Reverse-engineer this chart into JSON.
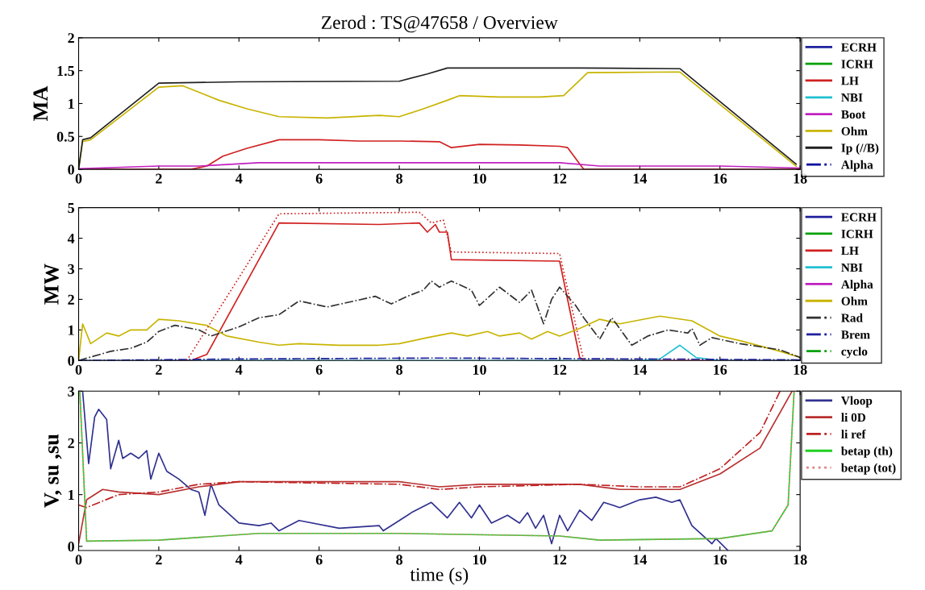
{
  "chart_data": [
    {
      "type": "line",
      "title": "Zerod : TS@47658 / Overview",
      "ylabel": "MA",
      "xlim": [
        0,
        18
      ],
      "xticks": [
        0,
        2,
        4,
        6,
        8,
        10,
        12,
        14,
        16,
        18
      ],
      "ylim": [
        0,
        2
      ],
      "yticks": [
        0,
        0.5,
        1,
        1.5,
        2
      ],
      "grid": false,
      "legend": "right",
      "series": [
        {
          "name": "ECRH",
          "color": "#1f1f9f",
          "line_style": "solid"
        },
        {
          "name": "ICRH",
          "color": "#00a000",
          "line_style": "solid"
        },
        {
          "name": "LH",
          "color": "#d02020",
          "line_style": "solid",
          "x": [
            0,
            2.8,
            3.2,
            3.6,
            4.2,
            5,
            6,
            7,
            8,
            9,
            9.3,
            10,
            11,
            12,
            12.2,
            12.6,
            18
          ],
          "values": [
            0,
            0,
            0.05,
            0.2,
            0.32,
            0.45,
            0.45,
            0.43,
            0.43,
            0.42,
            0.33,
            0.38,
            0.37,
            0.35,
            0.33,
            0,
            0
          ]
        },
        {
          "name": "NBI",
          "color": "#20c0d0",
          "line_style": "solid"
        },
        {
          "name": "Boot",
          "color": "#c020c0",
          "line_style": "solid",
          "x": [
            0,
            2,
            3,
            4.5,
            12,
            13,
            16,
            18
          ],
          "values": [
            0.01,
            0.05,
            0.05,
            0.1,
            0.1,
            0.05,
            0.05,
            0.02
          ]
        },
        {
          "name": "Ohm",
          "color": "#c8b400",
          "line_style": "solid",
          "x": [
            0,
            0.1,
            0.3,
            2,
            2.6,
            3.5,
            4.2,
            5,
            6.2,
            7.5,
            8,
            8.6,
            9.2,
            9.5,
            10.5,
            11.5,
            12.1,
            12.7,
            15,
            17.9
          ],
          "values": [
            0,
            0.42,
            0.45,
            1.25,
            1.27,
            1.05,
            0.92,
            0.8,
            0.78,
            0.82,
            0.8,
            0.92,
            1.05,
            1.12,
            1.1,
            1.1,
            1.12,
            1.47,
            1.48,
            0.05
          ]
        },
        {
          "name": "Ip (//B)",
          "color": "#202020",
          "line_style": "solid",
          "x": [
            0,
            0.1,
            0.3,
            2,
            4,
            8,
            8.7,
            9.2,
            12.5,
            15,
            17.9
          ],
          "values": [
            0,
            0.45,
            0.48,
            1.31,
            1.33,
            1.34,
            1.45,
            1.54,
            1.54,
            1.53,
            0.08
          ]
        },
        {
          "name": "Alpha",
          "color": "#0000a0",
          "line_style": "dashdot"
        }
      ]
    },
    {
      "type": "line",
      "ylabel": "MW",
      "xlim": [
        0,
        18
      ],
      "xticks": [
        0,
        2,
        4,
        6,
        8,
        10,
        12,
        14,
        16,
        18
      ],
      "ylim": [
        0,
        5
      ],
      "yticks": [
        0,
        1,
        2,
        3,
        4,
        5
      ],
      "grid": false,
      "legend": "right",
      "series": [
        {
          "name": "ECRH",
          "color": "#1f1f9f",
          "line_style": "solid"
        },
        {
          "name": "ICRH",
          "color": "#00a000",
          "line_style": "solid"
        },
        {
          "name": "LH",
          "color": "#d02020",
          "line_style": "solid",
          "x": [
            0,
            2.8,
            3.2,
            5,
            7.5,
            8.5,
            8.7,
            8.9,
            9,
            9.2,
            9.3,
            12,
            12.5,
            12.6,
            18
          ],
          "values": [
            0,
            0,
            0.2,
            4.5,
            4.45,
            4.5,
            4.2,
            4.45,
            4.2,
            4.2,
            3.3,
            3.25,
            0.1,
            0,
            0
          ]
        },
        {
          "name": "NBI",
          "color": "#20c0d0",
          "line_style": "solid",
          "x": [
            0,
            14,
            14.5,
            15,
            15.4,
            16,
            18
          ],
          "values": [
            0,
            0,
            0.05,
            0.5,
            0.1,
            0,
            0
          ]
        },
        {
          "name": "Alpha",
          "color": "#c020c0",
          "line_style": "solid"
        },
        {
          "name": "Ohm",
          "color": "#c8b400",
          "line_style": "solid",
          "x": [
            0,
            0.1,
            0.3,
            0.7,
            1,
            1.3,
            1.7,
            2,
            2.5,
            3.2,
            3.7,
            4.5,
            5,
            5.5,
            6.5,
            7.5,
            8,
            8.7,
            9.3,
            9.7,
            10.2,
            10.5,
            11,
            11.3,
            11.7,
            12,
            12.5,
            13,
            13.5,
            14.5,
            15.3,
            16,
            16.5,
            17.5,
            18
          ],
          "values": [
            0,
            1.2,
            0.55,
            0.9,
            0.8,
            1.0,
            1.0,
            1.35,
            1.3,
            1.15,
            0.8,
            0.6,
            0.5,
            0.55,
            0.5,
            0.5,
            0.55,
            0.75,
            0.9,
            0.8,
            0.95,
            0.8,
            0.9,
            0.7,
            0.95,
            0.8,
            1.05,
            1.35,
            1.2,
            1.45,
            1.3,
            0.8,
            0.65,
            0.3,
            0.1
          ]
        },
        {
          "name": "Rad",
          "color": "#303030",
          "line_style": "dashdot",
          "x": [
            0,
            0.8,
            1.3,
            1.7,
            2,
            2.4,
            3,
            3.3,
            4,
            4.5,
            5,
            5.5,
            6.2,
            7.4,
            7.8,
            8.2,
            8.6,
            8.8,
            9,
            9.3,
            9.8,
            10,
            10.5,
            11,
            11.3,
            11.6,
            11.8,
            12,
            12.4,
            12.6,
            13,
            13.3,
            13.8,
            14.2,
            14.7,
            15.2,
            15.3,
            15.5,
            15.8,
            16.5,
            17.5,
            18
          ],
          "values": [
            0,
            0.3,
            0.4,
            0.6,
            0.95,
            1.15,
            1.0,
            0.8,
            1.1,
            1.4,
            1.5,
            1.95,
            1.75,
            2.1,
            1.85,
            2.1,
            2.3,
            2.6,
            2.4,
            2.6,
            2.3,
            1.8,
            2.4,
            1.9,
            2.3,
            1.2,
            2.0,
            2.4,
            1.8,
            1.4,
            0.7,
            1.4,
            0.5,
            0.8,
            1.0,
            0.9,
            1.05,
            0.5,
            0.75,
            0.55,
            0.35,
            0.1
          ]
        },
        {
          "name": "Brem",
          "color": "#1f1f9f",
          "line_style": "dashdot",
          "x": [
            0,
            4,
            9,
            14,
            18
          ],
          "values": [
            0,
            0.05,
            0.08,
            0.05,
            0.02
          ]
        },
        {
          "name": "cyclo",
          "color": "#00a000",
          "line_style": "dashdot"
        },
        {
          "color": "#d02020",
          "line_style": "dotted",
          "x": [
            2.7,
            5,
            8.5,
            8.8,
            9.1,
            9.3,
            12,
            12.6
          ],
          "values": [
            0,
            4.8,
            4.85,
            4.5,
            4.6,
            3.55,
            3.5,
            0
          ]
        }
      ]
    },
    {
      "type": "line",
      "xlabel": "time (s)",
      "ylabel": "V, su ,su",
      "xlim": [
        0,
        18
      ],
      "xticks": [
        0,
        2,
        4,
        6,
        8,
        10,
        12,
        14,
        16,
        18
      ],
      "ylim": [
        -0.08,
        3
      ],
      "yticks": [
        0,
        1,
        2,
        3
      ],
      "grid": false,
      "legend": "right",
      "series": [
        {
          "name": "Vloop",
          "color": "#303090",
          "line_style": "solid",
          "x": [
            0.1,
            0.25,
            0.4,
            0.5,
            0.7,
            0.8,
            1.0,
            1.1,
            1.3,
            1.5,
            1.7,
            1.8,
            2.0,
            2.2,
            2.5,
            2.8,
            3.0,
            3.15,
            3.3,
            3.5,
            4.0,
            4.5,
            4.8,
            5.0,
            5.5,
            6.5,
            7.5,
            7.6,
            7.9,
            8.3,
            8.8,
            9.2,
            9.5,
            9.8,
            10.0,
            10.3,
            10.7,
            11.0,
            11.2,
            11.4,
            11.6,
            11.8,
            12.0,
            12.2,
            12.5,
            12.8,
            13.1,
            13.5,
            14.0,
            14.4,
            14.8,
            15.0,
            15.3,
            15.8,
            15.9,
            16.2
          ],
          "values": [
            3.0,
            1.6,
            2.5,
            2.65,
            2.45,
            1.5,
            2.05,
            1.7,
            1.8,
            1.7,
            1.85,
            1.3,
            1.8,
            1.45,
            1.3,
            1.1,
            1.05,
            0.6,
            1.2,
            0.8,
            0.45,
            0.4,
            0.45,
            0.3,
            0.5,
            0.35,
            0.4,
            0.3,
            0.45,
            0.65,
            0.85,
            0.55,
            0.85,
            0.55,
            0.8,
            0.45,
            0.6,
            0.45,
            0.65,
            0.35,
            0.6,
            0.05,
            0.6,
            0.3,
            0.7,
            0.5,
            0.85,
            0.75,
            0.9,
            0.95,
            0.85,
            0.9,
            0.4,
            0.05,
            0.15,
            -0.08
          ]
        },
        {
          "name": "li 0D",
          "color": "#b83030",
          "line_style": "solid",
          "x": [
            0,
            0.2,
            0.6,
            1,
            2,
            3,
            4,
            8,
            9,
            10,
            12.5,
            13.5,
            15,
            16,
            17,
            17.8
          ],
          "values": [
            0.05,
            0.9,
            1.1,
            1.05,
            1.0,
            1.15,
            1.25,
            1.25,
            1.15,
            1.2,
            1.2,
            1.1,
            1.1,
            1.4,
            1.9,
            3.0
          ]
        },
        {
          "name": "li ref",
          "color": "#c02020",
          "line_style": "dashdot",
          "x": [
            0,
            0.2,
            1,
            2,
            3,
            4,
            8,
            9,
            10,
            12.5,
            14,
            15,
            16,
            17,
            17.5
          ],
          "values": [
            0.8,
            0.75,
            1.0,
            1.05,
            1.2,
            1.25,
            1.2,
            1.1,
            1.15,
            1.2,
            1.15,
            1.15,
            1.5,
            2.2,
            3.0
          ]
        },
        {
          "name": "betap (th)",
          "color": "#20d020",
          "line_style": "solid",
          "x": [
            0.03,
            0.2,
            2,
            4.5,
            8,
            12,
            13,
            16,
            17.3,
            17.7,
            17.85
          ],
          "values": [
            3.0,
            0.1,
            0.12,
            0.25,
            0.25,
            0.2,
            0.12,
            0.15,
            0.3,
            0.8,
            3.0
          ]
        },
        {
          "name": "betap (tot)",
          "color": "#e08080",
          "line_style": "dotted",
          "x": [
            0.03,
            0.2,
            2,
            4.5,
            8,
            12,
            13,
            16,
            17.3,
            17.7,
            17.85
          ],
          "values": [
            3.0,
            0.1,
            0.12,
            0.25,
            0.25,
            0.2,
            0.12,
            0.15,
            0.3,
            0.8,
            3.0
          ]
        }
      ]
    }
  ]
}
